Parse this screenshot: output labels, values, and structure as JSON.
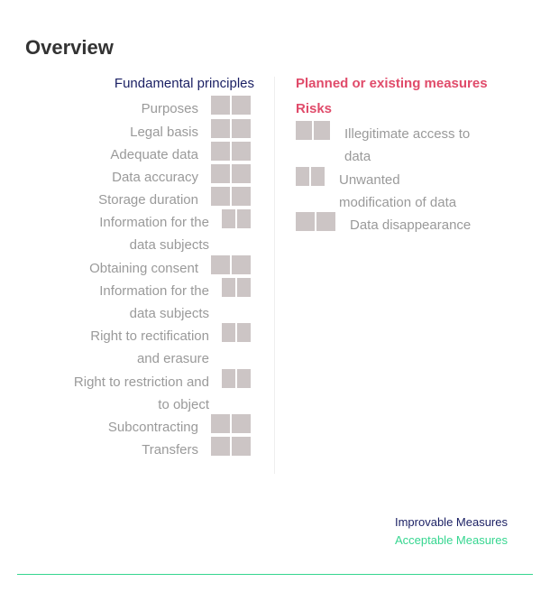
{
  "title": "Overview",
  "principles": {
    "heading": "Fundamental principles",
    "items": [
      {
        "line1": "Purposes"
      },
      {
        "line1": "Legal basis"
      },
      {
        "line1": "Adequate data"
      },
      {
        "line1": "Data accuracy"
      },
      {
        "line1": "Storage duration"
      },
      {
        "line1": "Information for the",
        "line2": "data subjects"
      },
      {
        "line1": "Obtaining consent"
      },
      {
        "line1": "Information for the",
        "line2": "data subjects"
      },
      {
        "line1": "Right to rectification",
        "line2": "and erasure"
      },
      {
        "line1": "Right to restriction and",
        "line2": "to object"
      },
      {
        "line1": "Subcontracting"
      },
      {
        "line1": "Transfers"
      }
    ]
  },
  "measures": {
    "heading": "Planned or existing measures",
    "risks_heading": "Risks",
    "items": [
      {
        "line1": "Illegitimate access to",
        "line2": "data"
      },
      {
        "line1": "Unwanted",
        "line2": "modification of data"
      },
      {
        "line1": "Data disappearance"
      }
    ]
  },
  "legend": {
    "improvable": "Improvable Measures",
    "acceptable": "Acceptable Measures"
  },
  "colors": {
    "heading_navy": "#1a1f63",
    "heading_red": "#e04b6a",
    "acceptable_green": "#36d690",
    "square_gray": "#ccc5c5"
  }
}
